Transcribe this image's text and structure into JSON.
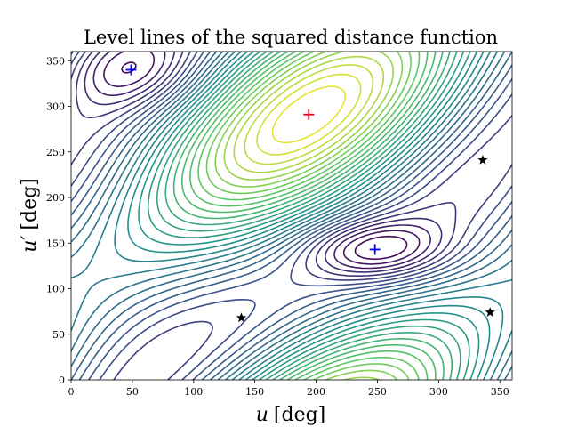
{
  "chart_data": {
    "type": "contour",
    "title": "Level lines of the squared distance function",
    "xlabel": {
      "var": "u",
      "unit": "[deg]"
    },
    "ylabel": {
      "var": "u′",
      "unit": "[deg]"
    },
    "xlim": [
      0,
      360
    ],
    "ylim": [
      0,
      360
    ],
    "xticks": [
      0,
      50,
      100,
      150,
      200,
      250,
      300,
      350
    ],
    "yticks": [
      0,
      50,
      100,
      150,
      200,
      250,
      300,
      350
    ],
    "colormap": [
      "#440154",
      "#3b528b",
      "#21918c",
      "#5ec962",
      "#fde725"
    ],
    "maximum": {
      "x": 194,
      "y": 291,
      "marker": "+",
      "color": "#e3001b"
    },
    "minima": [
      {
        "x": 49,
        "y": 340,
        "marker": "+",
        "color": "#0000ff"
      },
      {
        "x": 248,
        "y": 143,
        "marker": "+",
        "color": "#0000ff"
      }
    ],
    "saddles": [
      {
        "x": 139,
        "y": 68,
        "marker": "star",
        "color": "#000000"
      },
      {
        "x": 336,
        "y": 241,
        "marker": "star",
        "color": "#000000"
      },
      {
        "x": 342,
        "y": 74,
        "marker": "star",
        "color": "#000000"
      }
    ]
  }
}
